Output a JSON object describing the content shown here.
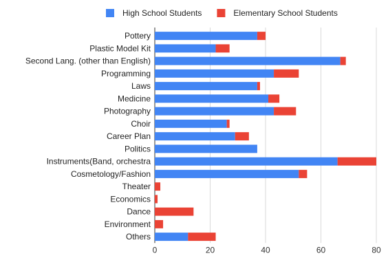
{
  "chart_data": {
    "type": "bar",
    "orientation": "horizontal",
    "stacked": true,
    "title": "",
    "xlabel": "",
    "ylabel": "",
    "xlim": [
      0,
      80
    ],
    "xticks": [
      0,
      20,
      40,
      60,
      80
    ],
    "grid": true,
    "legend_position": "top",
    "categories": [
      "Pottery",
      "Plastic Model Kit",
      "Second Lang. (other than English)",
      "Programming",
      "Laws",
      "Medicine",
      "Photography",
      "Choir",
      "Career Plan",
      "Politics",
      "Instruments(Band, orchestra",
      "Cosmetology/Fashion",
      "Theater",
      "Economics",
      "Dance",
      "Environment",
      "Others"
    ],
    "series": [
      {
        "name": "High School Students",
        "color": "#4285f4",
        "values": [
          37,
          22,
          67,
          43,
          37,
          41,
          43,
          26,
          29,
          37,
          66,
          52,
          0,
          0,
          0,
          0,
          12
        ]
      },
      {
        "name": "Elementary School Students",
        "color": "#ea4335",
        "values": [
          3,
          5,
          2,
          9,
          1,
          4,
          8,
          1,
          5,
          0,
          14,
          3,
          2,
          1,
          14,
          3,
          10
        ]
      }
    ]
  }
}
